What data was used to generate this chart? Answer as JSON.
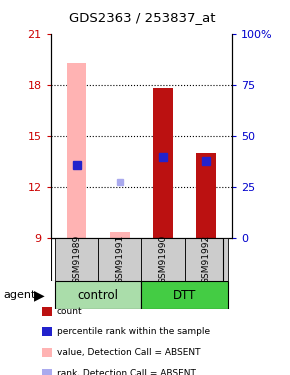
{
  "title": "GDS2363 / 253837_at",
  "samples": [
    "GSM91989",
    "GSM91991",
    "GSM91990",
    "GSM91992"
  ],
  "ylim": [
    9,
    21
  ],
  "y_ticks": [
    9,
    12,
    15,
    18,
    21
  ],
  "y_right_ticks": [
    0,
    25,
    50,
    75,
    100
  ],
  "y_right_labels": [
    "0",
    "25",
    "50",
    "75",
    "100%"
  ],
  "left_color": "#cc0000",
  "right_color": "#0000cc",
  "bar_bottom": 9,
  "red_bars": {
    "GSM91989": null,
    "GSM91991": null,
    "GSM91990": 17.8,
    "GSM91992": 14.0
  },
  "pink_bars": {
    "GSM91989": 19.3,
    "GSM91991": 9.38,
    "GSM91990": null,
    "GSM91992": null
  },
  "blue_markers": {
    "GSM91989": 13.3,
    "GSM91991": null,
    "GSM91990": 13.75,
    "GSM91992": 13.55
  },
  "light_blue_markers": {
    "GSM91989": null,
    "GSM91991": 12.3,
    "GSM91990": null,
    "GSM91992": null
  },
  "bar_width": 0.45,
  "group_control_color": "#aaddaa",
  "group_dtt_color": "#44cc44",
  "sample_box_color": "#cccccc"
}
